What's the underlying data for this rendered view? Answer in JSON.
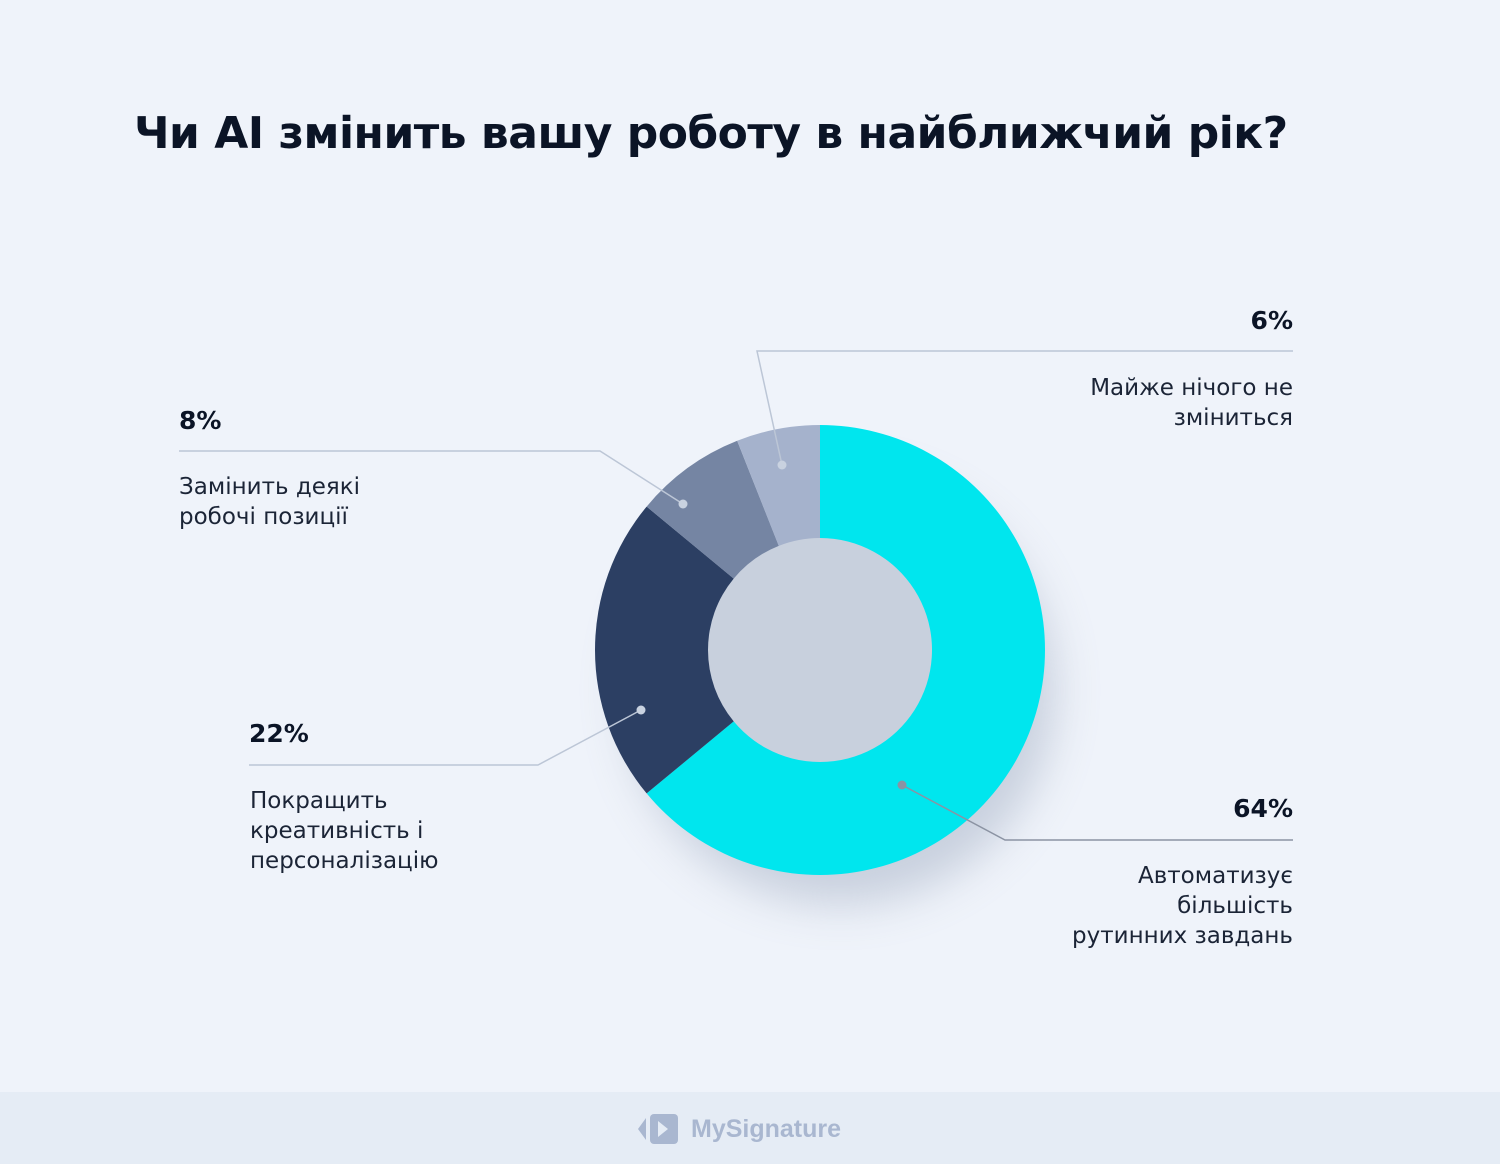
{
  "chart_data": {
    "type": "pie",
    "variant": "donut",
    "title": "Чи AI змінить вашу роботу в найближчий рік?",
    "slices": [
      {
        "label": "Автоматизує більшість рутинних завдань",
        "value": 64,
        "display": "64%",
        "color": "#00E6EE"
      },
      {
        "label": "Покращить креативність і персоналізацію",
        "value": 22,
        "display": "22%",
        "color": "#2C3F63"
      },
      {
        "label": "Замінить деякі робочі позиції",
        "value": 8,
        "display": "8%",
        "color": "#7585A3"
      },
      {
        "label": "Майже нічого не зміниться",
        "value": 6,
        "display": "6%",
        "color": "#A5B2CC"
      }
    ],
    "start": "top",
    "direction": "clockwise"
  },
  "footer": {
    "brand": "MySignature"
  }
}
